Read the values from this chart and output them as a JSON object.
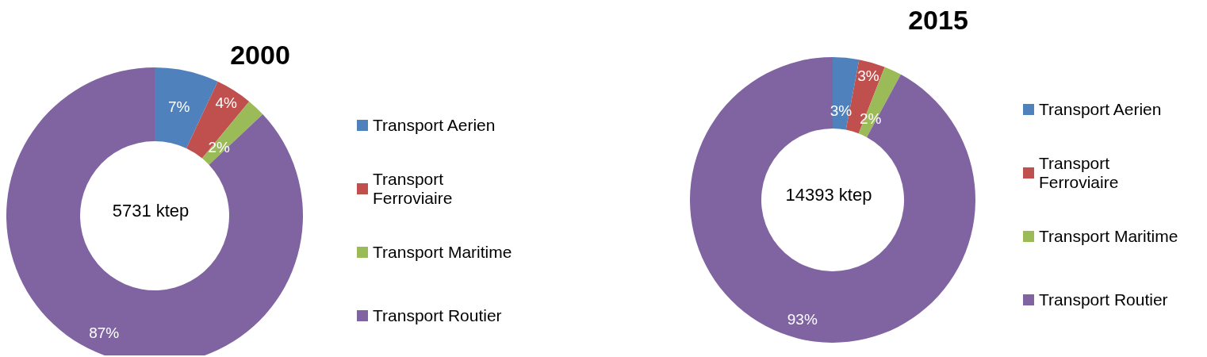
{
  "chart_data": [
    {
      "type": "donut",
      "title": "2000",
      "categories": [
        "Transport Aerien",
        "Transport Ferroviaire",
        "Transport Maritime",
        "Transport Routier"
      ],
      "values": [
        7,
        4,
        2,
        87
      ],
      "value_labels": [
        "7%",
        "4%",
        "2%",
        "87%"
      ],
      "colors": [
        "#4f81bd",
        "#c0504d",
        "#9bbb59",
        "#8064a2"
      ],
      "legend": "right",
      "annotations": [
        "5731 ktep"
      ]
    },
    {
      "type": "donut",
      "title": "2015",
      "categories": [
        "Transport Aerien",
        "Transport Ferroviaire",
        "Transport Maritime",
        "Transport Routier"
      ],
      "values": [
        3,
        3,
        2,
        93
      ],
      "value_labels": [
        "3%",
        "3%",
        "2%",
        "93%"
      ],
      "colors": [
        "#4f81bd",
        "#c0504d",
        "#9bbb59",
        "#8064a2"
      ],
      "legend": "right",
      "annotations": [
        "14393 ktep"
      ]
    }
  ]
}
